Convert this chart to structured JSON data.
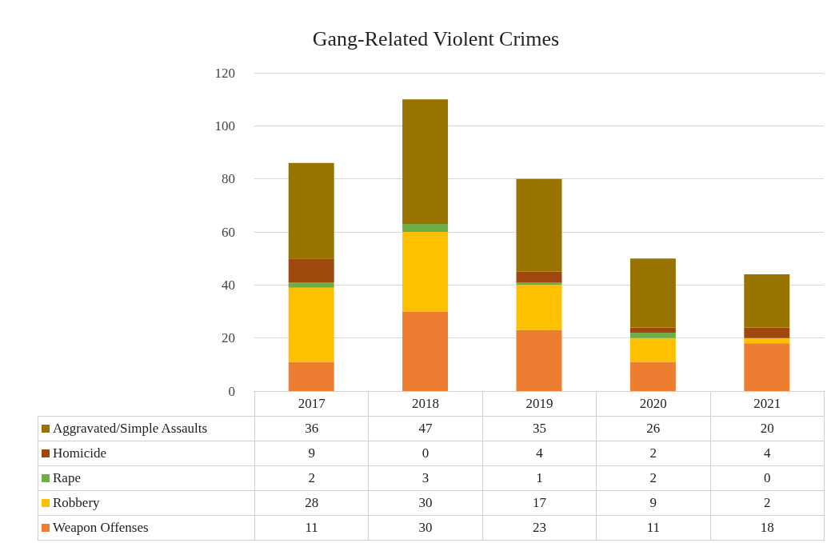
{
  "chart_data": {
    "type": "bar",
    "title": "Gang-Related Violent Crimes",
    "categories": [
      "2017",
      "2018",
      "2019",
      "2020",
      "2021"
    ],
    "stacked": true,
    "series": [
      {
        "name": "Weapon Offenses",
        "color": "#ed7d31",
        "values": [
          11,
          30,
          23,
          11,
          18
        ]
      },
      {
        "name": "Robbery",
        "color": "#ffc000",
        "values": [
          28,
          30,
          17,
          9,
          2
        ]
      },
      {
        "name": "Rape",
        "color": "#70ad47",
        "values": [
          2,
          3,
          1,
          2,
          0
        ]
      },
      {
        "name": "Homicide",
        "color": "#9e480e",
        "values": [
          9,
          0,
          4,
          2,
          4
        ]
      },
      {
        "name": "Aggravated/Simple Assaults",
        "color": "#997300",
        "values": [
          36,
          47,
          35,
          26,
          20
        ]
      }
    ],
    "ylim": [
      0,
      120
    ],
    "yticks": [
      0,
      20,
      40,
      60,
      80,
      100,
      120
    ],
    "grid": "y",
    "legend": "bottom",
    "data_labels": true
  }
}
